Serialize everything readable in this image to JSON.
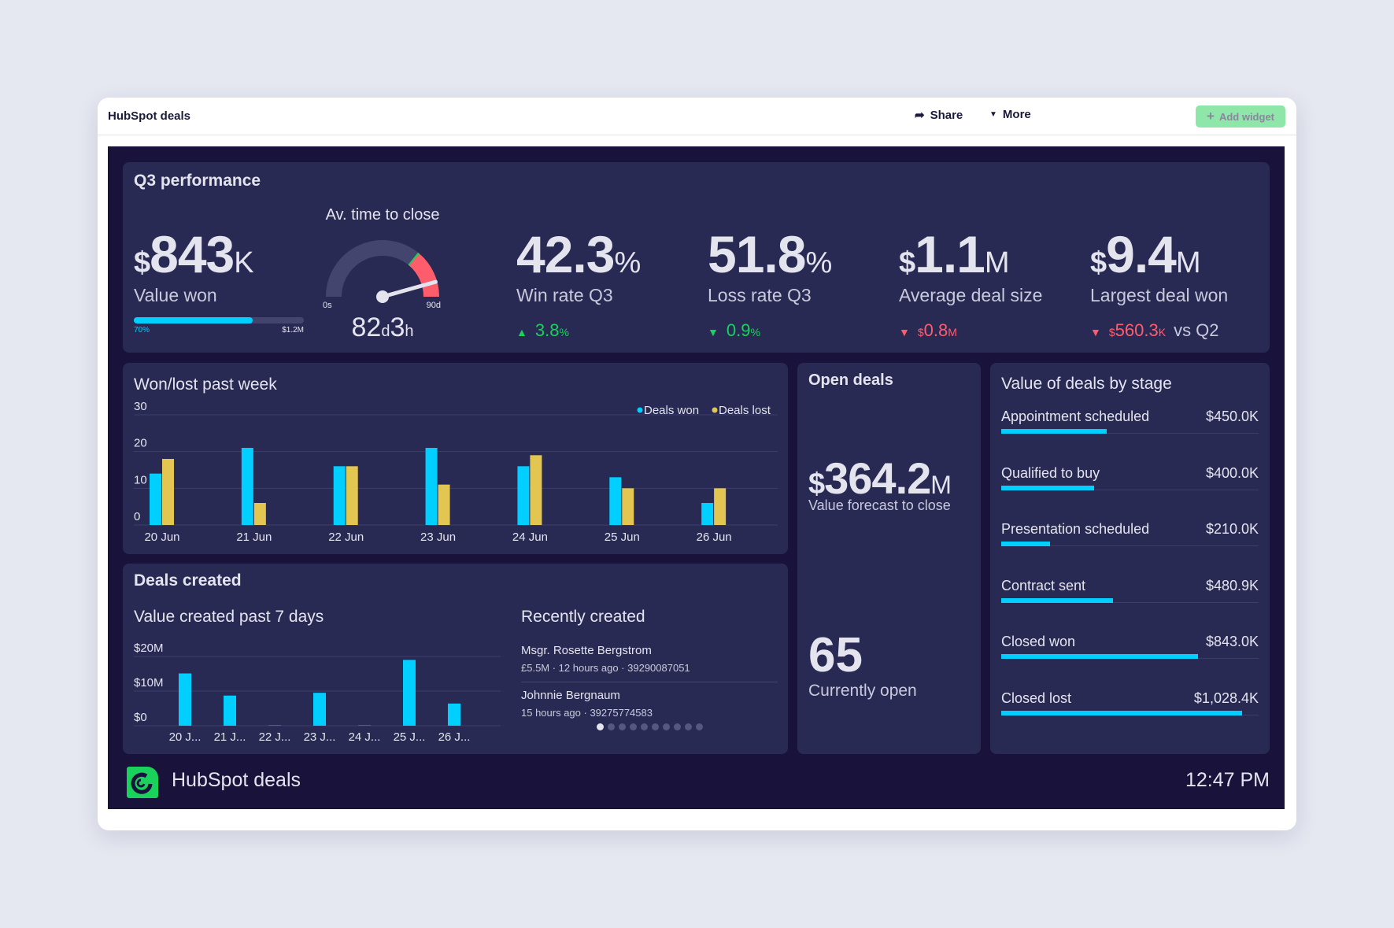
{
  "header": {
    "title": "HubSpot deals",
    "share": "Share",
    "more": "More",
    "add_widget": "Add widget"
  },
  "colors": {
    "won": "#00cfff",
    "lost": "#e3c552",
    "up": "#19d15b",
    "down": "#ff5c6c",
    "panel": "#292a54",
    "background": "#19133c"
  },
  "q3": {
    "title": "Q3 performance",
    "value_won": {
      "currency": "$",
      "value": "843",
      "unit": "K",
      "label": "Value won",
      "progress_pct": 70,
      "progress_label": "70%",
      "target": "$1.2M"
    },
    "time_to_close": {
      "title": "Av. time to close",
      "min": "0s",
      "max": "90d",
      "days": "82",
      "d": "d",
      "hours": "3",
      "h": "h",
      "gauge_fraction": 0.913,
      "red_zone_start": 0.72
    },
    "win_rate": {
      "value": "42.3",
      "unit": "%",
      "label": "Win rate Q3",
      "delta_dir": "up",
      "delta": "3.8",
      "delta_unit": "%"
    },
    "loss_rate": {
      "value": "51.8",
      "unit": "%",
      "label": "Loss rate Q3",
      "delta_dir": "down",
      "delta": "0.9",
      "delta_unit": "%"
    },
    "avg_deal": {
      "currency": "$",
      "value": "1.1",
      "unit": "M",
      "label": "Average deal size",
      "delta_dir": "down",
      "delta_cur": "$",
      "delta": "0.8",
      "delta_unit": "M"
    },
    "largest": {
      "currency": "$",
      "value": "9.4",
      "unit": "M",
      "label": "Largest deal won",
      "delta_dir": "down",
      "delta_cur": "$",
      "delta": "560.3",
      "delta_unit": "K",
      "suffix": "vs Q2"
    }
  },
  "chart_data": [
    {
      "type": "bar",
      "title": "Won/lost past week",
      "categories": [
        "20 Jun",
        "21 Jun",
        "22 Jun",
        "23 Jun",
        "24 Jun",
        "25 Jun",
        "26 Jun"
      ],
      "series": [
        {
          "name": "Deals won",
          "values": [
            14,
            21,
            16,
            21,
            16,
            13,
            6
          ]
        },
        {
          "name": "Deals lost",
          "values": [
            18,
            6,
            16,
            11,
            19,
            10,
            10
          ]
        }
      ],
      "yticks": [
        "0",
        "10",
        "20",
        "30"
      ],
      "ylim": [
        0,
        30
      ],
      "legend": "top-right",
      "grid": true
    },
    {
      "type": "bar",
      "title": "Value created past 7 days",
      "categories": [
        "20 J...",
        "21 J...",
        "22 J...",
        "23 J...",
        "24 J...",
        "25 J...",
        "26 J..."
      ],
      "values": [
        15.1,
        8.7,
        0.1,
        9.5,
        0.1,
        19,
        6.4
      ],
      "yticks": [
        "$0",
        "$10M",
        "$20M"
      ],
      "ylim": [
        0,
        20
      ],
      "grid": true
    }
  ],
  "deals_created": {
    "title": "Deals created",
    "recent_title": "Recently created",
    "recent": [
      {
        "name": "Msgr. Rosette Bergstrom",
        "meta": "£5.5M · 12 hours ago · 39290087051"
      },
      {
        "name": "Johnnie Bergnaum",
        "meta": "15 hours ago · 39275774583"
      }
    ],
    "pages": 10,
    "current_page": 1
  },
  "open_deals": {
    "title": "Open deals",
    "currency": "$",
    "value": "364.2",
    "unit": "M",
    "value_label": "Value forecast to close",
    "count": "65",
    "count_label": "Currently open"
  },
  "stages": {
    "title": "Value of deals by stage",
    "items": [
      {
        "label": "Appointment scheduled",
        "value": "$450.0K",
        "fraction": 0.41
      },
      {
        "label": "Qualified to buy",
        "value": "$400.0K",
        "fraction": 0.36
      },
      {
        "label": "Presentation scheduled",
        "value": "$210.0K",
        "fraction": 0.19
      },
      {
        "label": "Contract sent",
        "value": "$480.9K",
        "fraction": 0.435
      },
      {
        "label": "Closed won",
        "value": "$843.0K",
        "fraction": 0.765
      },
      {
        "label": "Closed lost",
        "value": "$1,028.4K",
        "fraction": 0.935
      }
    ]
  },
  "footer": {
    "title": "HubSpot deals",
    "time": "12:47 PM"
  }
}
